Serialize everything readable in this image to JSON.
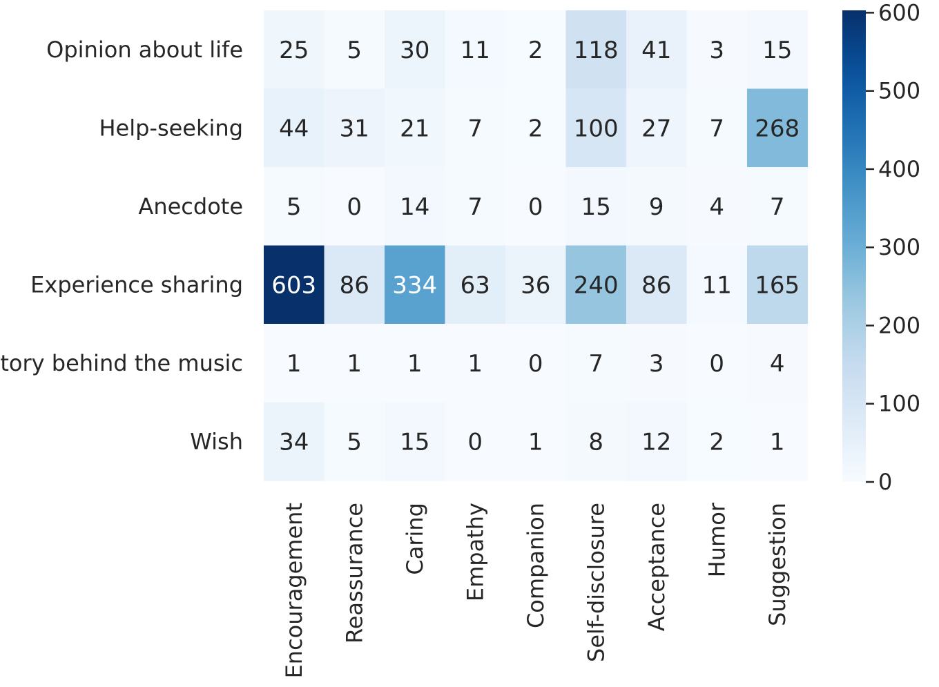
{
  "chart_data": {
    "type": "heatmap",
    "title": "",
    "xlabel": "",
    "ylabel": "",
    "rows": [
      "Opinion about life",
      "Help-seeking",
      "Anecdote",
      "Experience sharing",
      "Story behind the music",
      "Wish"
    ],
    "columns": [
      "Encouragement",
      "Reassurance",
      "Caring",
      "Empathy",
      "Companion",
      "Self-disclosure",
      "Acceptance",
      "Humor",
      "Suggestion"
    ],
    "values": [
      [
        25,
        5,
        30,
        11,
        2,
        118,
        41,
        3,
        15
      ],
      [
        44,
        31,
        21,
        7,
        2,
        100,
        27,
        7,
        268
      ],
      [
        5,
        0,
        14,
        7,
        0,
        15,
        9,
        4,
        7
      ],
      [
        603,
        86,
        334,
        63,
        36,
        240,
        86,
        11,
        165
      ],
      [
        1,
        1,
        1,
        1,
        0,
        7,
        3,
        0,
        4
      ],
      [
        34,
        5,
        15,
        0,
        1,
        8,
        12,
        2,
        1
      ]
    ],
    "colormap": "Blues",
    "color_range": [
      0,
      603
    ],
    "colorbar": {
      "ticks": [
        0,
        100,
        200,
        300,
        400,
        500,
        600
      ],
      "tick_labels": [
        "0",
        "100",
        "200",
        "300",
        "400",
        "500",
        "600"
      ],
      "position": "right"
    },
    "colors": {
      "low": "#f7fbff",
      "high": "#08306b",
      "text_dark": "#262626",
      "text_light": "#ffffff"
    }
  }
}
